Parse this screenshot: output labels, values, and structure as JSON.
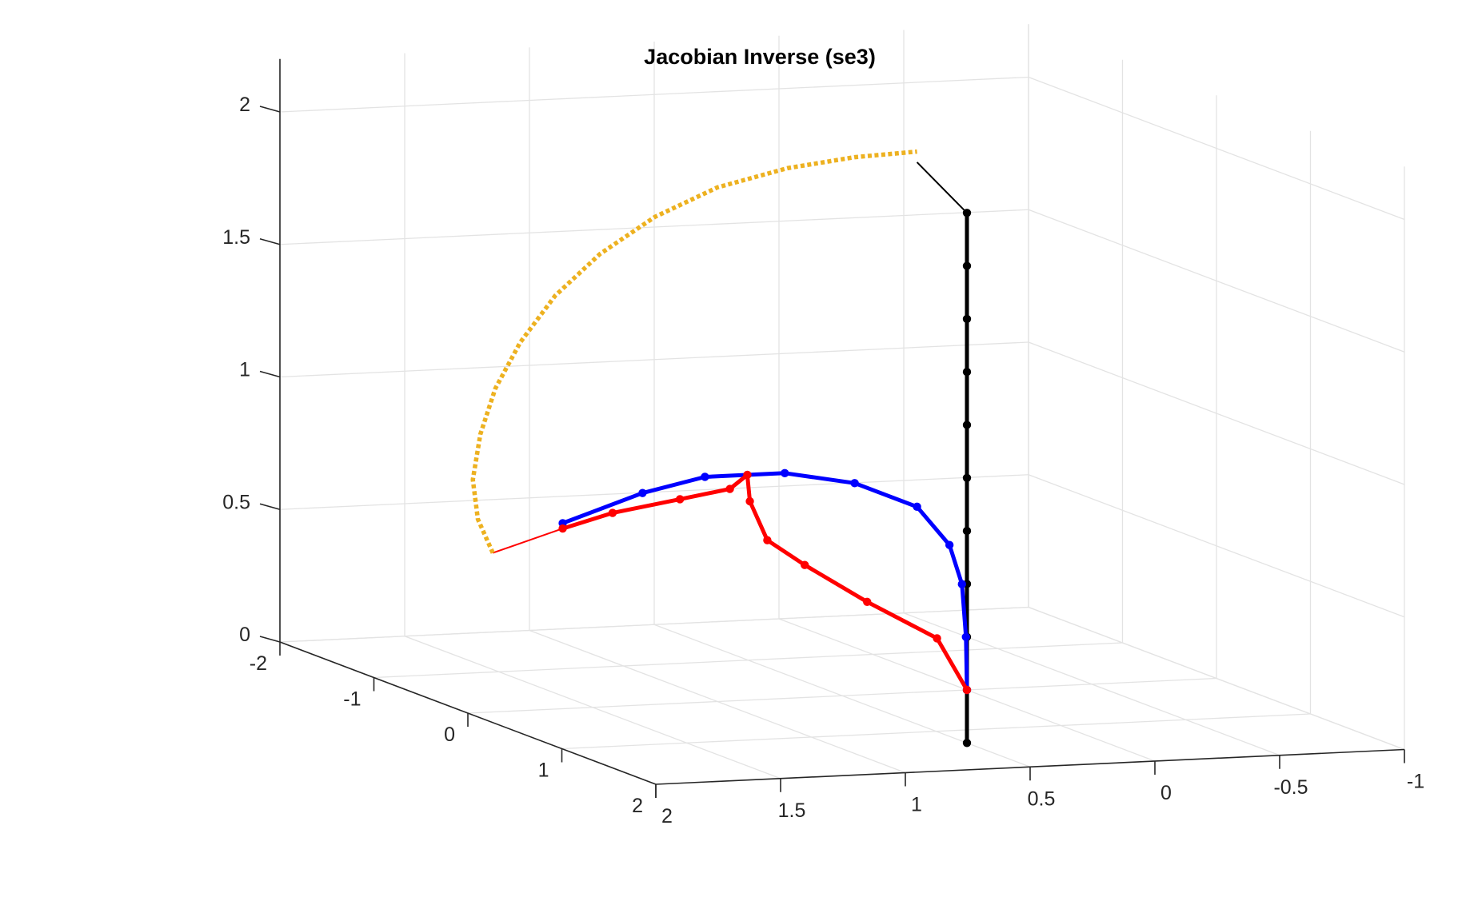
{
  "chart_data": {
    "type": "line",
    "title": "Jacobian Inverse (se3)",
    "xlabel": "",
    "ylabel": "",
    "zlabel": "",
    "projection": "3d",
    "grid": true,
    "legend": "none",
    "x_axis": {
      "ticks": [
        -2,
        -1,
        0,
        1,
        2
      ],
      "tick_labels": [
        "-2",
        "-1",
        "0",
        "1",
        "2"
      ],
      "lim": [
        -2,
        2
      ]
    },
    "y_axis": {
      "ticks": [
        2,
        1.5,
        1,
        0.5,
        0,
        -0.5,
        -1
      ],
      "tick_labels": [
        "2",
        "1.5",
        "1",
        "0.5",
        "0",
        "-0.5",
        "-1"
      ],
      "lim": [
        -1,
        2
      ]
    },
    "z_axis": {
      "ticks": [
        0,
        0.5,
        1,
        1.5,
        2
      ],
      "tick_labels": [
        "0",
        "0.5",
        "1",
        "1.5",
        "2"
      ],
      "lim": [
        0,
        2.2
      ]
    },
    "series": [
      {
        "role": "black-initial-configuration",
        "color": "#000000",
        "marker": "dot",
        "points": [
          [
            0,
            0,
            -0.2
          ],
          [
            0,
            0,
            0
          ],
          [
            0,
            0,
            0.2
          ],
          [
            0,
            0,
            0.4
          ],
          [
            0,
            0,
            0.6
          ],
          [
            0,
            0,
            0.8
          ],
          [
            0,
            0,
            1.0
          ],
          [
            0,
            0,
            1.2
          ],
          [
            0,
            0,
            1.4
          ],
          [
            0,
            0,
            1.6
          ],
          [
            0,
            0,
            1.8
          ]
        ]
      },
      {
        "role": "black-end-link",
        "color": "#000000",
        "marker": "none",
        "points": [
          [
            0,
            0,
            1.8
          ],
          [
            0,
            0.2,
            2.0
          ]
        ]
      },
      {
        "role": "blue-configuration",
        "color": "#0000ff",
        "marker": "dot",
        "points": [
          [
            0,
            0,
            0
          ],
          [
            0,
            0.004,
            0.2
          ],
          [
            0,
            0.02,
            0.4
          ],
          [
            0,
            0.07,
            0.55
          ],
          [
            0,
            0.2,
            0.7
          ],
          [
            0,
            0.45,
            0.8
          ],
          [
            0,
            0.73,
            0.85
          ],
          [
            0,
            1.05,
            0.85
          ],
          [
            0,
            1.3,
            0.8
          ],
          [
            0,
            1.62,
            0.7
          ]
        ]
      },
      {
        "role": "red-configuration",
        "color": "#ff0000",
        "marker": "dot",
        "points": [
          [
            0,
            0,
            0
          ],
          [
            0,
            0.12,
            0.2
          ],
          [
            0,
            0.4,
            0.35
          ],
          [
            0,
            0.65,
            0.5
          ],
          [
            0,
            0.8,
            0.6
          ],
          [
            0,
            0.87,
            0.75
          ],
          [
            0,
            0.88,
            0.85
          ],
          [
            0,
            0.95,
            0.8
          ],
          [
            0,
            1.15,
            0.77
          ],
          [
            0,
            1.42,
            0.73
          ],
          [
            0,
            1.62,
            0.68
          ]
        ]
      },
      {
        "role": "red-end-link",
        "color": "#ff0000",
        "marker": "none",
        "points": [
          [
            0,
            1.62,
            0.68
          ],
          [
            0,
            1.9,
            0.6
          ]
        ]
      },
      {
        "role": "orange-target-trajectory",
        "color": "#edb120",
        "marker": "dotted",
        "points": [
          [
            0,
            1.9,
            0.6
          ],
          [
            0,
            1.96,
            0.73
          ],
          [
            0,
            1.98,
            0.88
          ],
          [
            0,
            1.95,
            1.05
          ],
          [
            0,
            1.89,
            1.22
          ],
          [
            0,
            1.79,
            1.39
          ],
          [
            0,
            1.65,
            1.56
          ],
          [
            0,
            1.47,
            1.71
          ],
          [
            0,
            1.25,
            1.84
          ],
          [
            0,
            1.0,
            1.94
          ],
          [
            0,
            0.72,
            2.0
          ],
          [
            0,
            0.45,
            2.03
          ],
          [
            0,
            0.2,
            2.04
          ]
        ]
      }
    ]
  }
}
